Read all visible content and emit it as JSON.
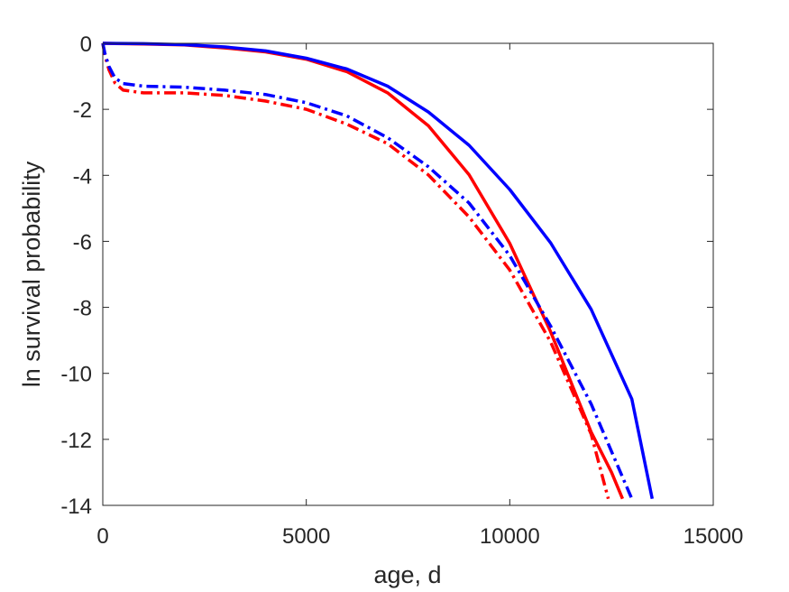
{
  "chart_data": {
    "type": "line",
    "xlabel": "age, d",
    "ylabel": "ln survival probability",
    "xlim": [
      0,
      15000
    ],
    "ylim": [
      -14,
      0
    ],
    "xticks": [
      0,
      5000,
      10000,
      15000
    ],
    "yticks": [
      0,
      -2,
      -4,
      -6,
      -8,
      -10,
      -12,
      -14
    ],
    "xtick_labels": [
      "0",
      "5000",
      "10000",
      "15000"
    ],
    "ytick_labels": [
      "0",
      "-2",
      "-4",
      "-6",
      "-8",
      "-10",
      "-12",
      "-14"
    ],
    "grid": false,
    "box": true,
    "series": [
      {
        "color": "#ff0000",
        "style": "solid",
        "x": [
          0,
          1000,
          2000,
          3000,
          4000,
          5000,
          6000,
          7000,
          8000,
          9000,
          10000,
          11000,
          12000,
          12500,
          12770
        ],
        "y": [
          0,
          -0.02,
          -0.05,
          -0.14,
          -0.26,
          -0.48,
          -0.86,
          -1.5,
          -2.5,
          -3.98,
          -6.06,
          -8.73,
          -11.78,
          -13.0,
          -13.8
        ]
      },
      {
        "color": "#0000ff",
        "style": "solid",
        "x": [
          0,
          1000,
          2000,
          3000,
          4000,
          5000,
          6000,
          7000,
          8000,
          9000,
          10000,
          11000,
          12000,
          13000,
          13500
        ],
        "y": [
          0,
          -0.01,
          -0.04,
          -0.11,
          -0.23,
          -0.45,
          -0.78,
          -1.3,
          -2.08,
          -3.09,
          -4.43,
          -6.04,
          -8.06,
          -10.78,
          -13.8
        ]
      },
      {
        "color": "#ff0000",
        "style": "dashdot",
        "x": [
          0,
          50,
          150,
          300,
          500,
          1000,
          2000,
          3000,
          4000,
          5000,
          6000,
          7000,
          8000,
          9000,
          10000,
          11000,
          12000,
          12420
        ],
        "y": [
          0,
          -0.35,
          -0.8,
          -1.2,
          -1.42,
          -1.5,
          -1.5,
          -1.58,
          -1.75,
          -2.0,
          -2.45,
          -3.04,
          -3.99,
          -5.26,
          -6.87,
          -9.04,
          -11.84,
          -13.8
        ]
      },
      {
        "color": "#0000ff",
        "style": "dashdot",
        "x": [
          0,
          50,
          150,
          300,
          500,
          1000,
          2000,
          3000,
          4000,
          5000,
          6000,
          7000,
          8000,
          9000,
          10000,
          11000,
          12000,
          13000
        ],
        "y": [
          0,
          -0.3,
          -0.7,
          -1.05,
          -1.22,
          -1.3,
          -1.33,
          -1.42,
          -1.55,
          -1.8,
          -2.2,
          -2.86,
          -3.74,
          -4.84,
          -6.43,
          -8.56,
          -10.93,
          -13.8
        ]
      }
    ]
  }
}
